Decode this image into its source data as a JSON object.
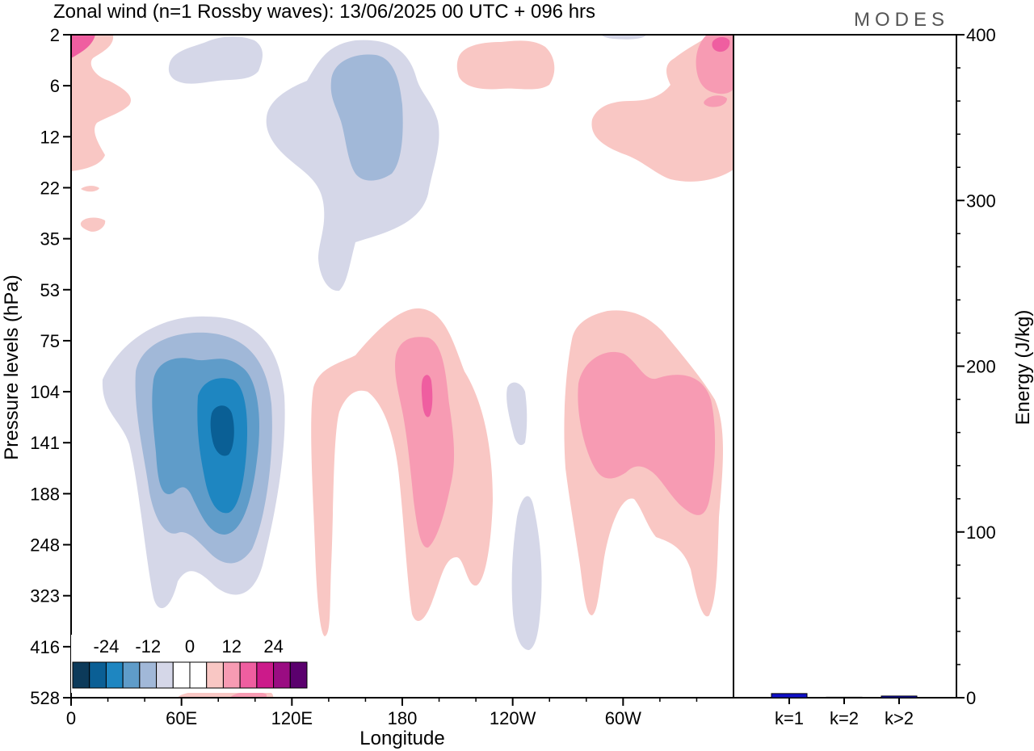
{
  "title": "Zonal wind (n=1 Rossby waves):  13/06/2025  00 UTC  + 096 hrs",
  "logo": "MODES",
  "chart_data": [
    {
      "type": "heatmap",
      "xlabel": "Longitude",
      "ylabel": "Pressure levels (hPa)",
      "x_ticks": [
        "0",
        "60E",
        "120E",
        "180",
        "120W",
        "60W"
      ],
      "x_tick_values": [
        0,
        60,
        120,
        180,
        240,
        300
      ],
      "xlim": [
        0,
        360
      ],
      "y_ticks": [
        "2",
        "6",
        "12",
        "22",
        "35",
        "53",
        "75",
        "104",
        "141",
        "188",
        "248",
        "323",
        "416",
        "528"
      ],
      "y_scale": "log-pressure (levels equally spaced)",
      "colorbar": {
        "tick_labels": [
          "-24",
          "-12",
          "0",
          "12",
          "24"
        ],
        "colors": [
          "#0c3a5a",
          "#0a5f95",
          "#1e86c1",
          "#5f9cc9",
          "#a1b8d8",
          "#d5d7e8",
          "#ffffff",
          "#ffffff",
          "#f9c7c4",
          "#f79bb3",
          "#ef5ea0",
          "#cc1a8a",
          "#9a0c82",
          "#5b006e"
        ]
      },
      "features": [
        {
          "name": "negative anomaly",
          "center_lon": 82,
          "center_level": 141,
          "peak": -24
        },
        {
          "name": "negative anomaly",
          "center_lon": 165,
          "center_level": 6,
          "peak": -8
        },
        {
          "name": "positive anomaly",
          "center_lon": 193,
          "center_level": 104,
          "peak": 16
        },
        {
          "name": "positive anomaly",
          "center_lon": 300,
          "center_level": 141,
          "peak": 10
        },
        {
          "name": "positive anomaly",
          "center_lon": 350,
          "center_level": 2,
          "peak": 14
        }
      ]
    },
    {
      "type": "bar",
      "categories": [
        "k=1",
        "k=2",
        "k>2"
      ],
      "values": [
        2.5,
        0.3,
        1.0
      ],
      "ylabel": "Energy (J/kg)",
      "ylim": [
        0,
        400
      ],
      "y_ticks": [
        "0",
        "100",
        "200",
        "300",
        "400"
      ],
      "bar_color": "#1010c8"
    }
  ]
}
